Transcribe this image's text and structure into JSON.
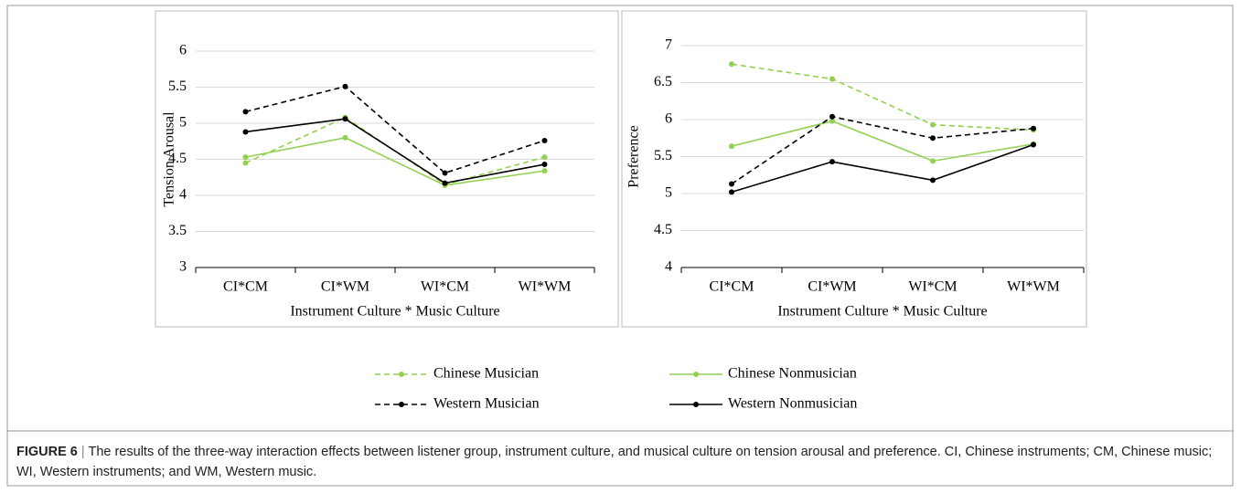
{
  "chart_data": [
    {
      "type": "line",
      "y_label": "Tension Arousal",
      "x_label": "Instrument Culture * Music Culture",
      "categories": [
        "CI*CM",
        "CI*WM",
        "WI*CM",
        "WI*WM"
      ],
      "ylim": [
        3,
        6
      ],
      "yticks": [
        3,
        3.5,
        4,
        4.5,
        5,
        5.5,
        6
      ],
      "grid": true,
      "series": [
        {
          "name": "Chinese Musician",
          "color": "#92d050",
          "line_style": "dashed",
          "values": [
            4.45,
            5.08,
            4.15,
            4.53
          ]
        },
        {
          "name": "Chinese Nonmusician",
          "color": "#92d050",
          "line_style": "solid",
          "values": [
            4.53,
            4.8,
            4.14,
            4.34
          ]
        },
        {
          "name": "Western Musician",
          "color": "#000000",
          "line_style": "dashed",
          "values": [
            5.16,
            5.51,
            4.31,
            4.76
          ]
        },
        {
          "name": "Western Nonmusician",
          "color": "#000000",
          "line_style": "solid",
          "values": [
            4.88,
            5.06,
            4.17,
            4.43
          ]
        }
      ]
    },
    {
      "type": "line",
      "y_label": "Preference",
      "x_label": "Instrument Culture * Music Culture",
      "categories": [
        "CI*CM",
        "CI*WM",
        "WI*CM",
        "WI*WM"
      ],
      "ylim": [
        4,
        7
      ],
      "yticks": [
        4,
        4.5,
        5,
        5.5,
        6,
        6.5,
        7
      ],
      "grid": true,
      "series": [
        {
          "color": "#92d050",
          "line_style": "dashed",
          "values": [
            6.75,
            6.55,
            5.93,
            5.86
          ]
        },
        {
          "color": "#92d050",
          "line_style": "solid",
          "values": [
            5.64,
            5.98,
            5.44,
            5.67
          ]
        },
        {
          "color": "#000000",
          "line_style": "dashed",
          "values": [
            5.13,
            6.04,
            5.75,
            5.88
          ]
        },
        {
          "color": "#000000",
          "line_style": "solid",
          "values": [
            5.02,
            5.43,
            5.18,
            5.66
          ]
        }
      ]
    }
  ],
  "caption": {
    "label": "FIGURE 6",
    "separator": "|",
    "text": "The results of the three-way interaction effects between listener group, instrument culture, and musical culture on tension arousal and preference. CI, Chinese instruments; CM, Chinese music; WI, Western instruments; and WM, Western music."
  }
}
